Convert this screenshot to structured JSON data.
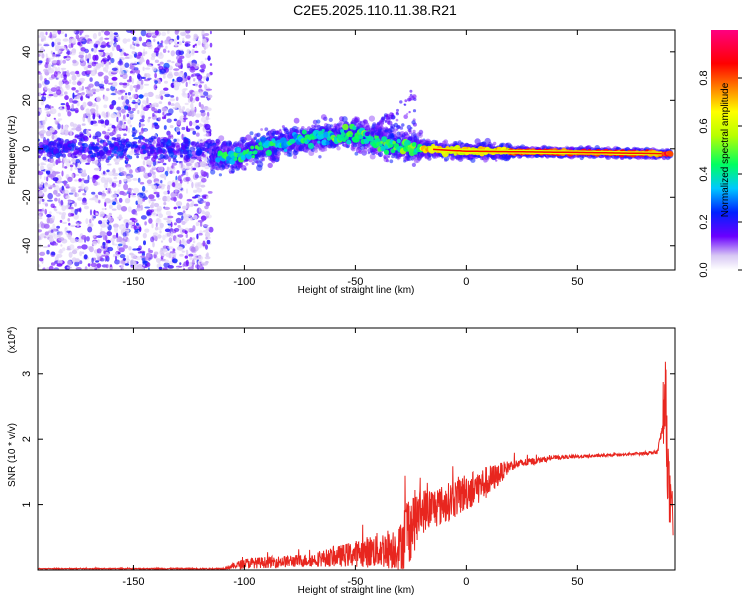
{
  "title": "C2E5.2025.110.11.38.R21",
  "chart_data": [
    {
      "type": "heatmap",
      "xlabel": "Height of straight line (km)",
      "ylabel": "Frequency (Hz)",
      "xlim": [
        -193,
        94
      ],
      "ylim": [
        -50,
        49
      ],
      "xticks": [
        -150,
        -100,
        -50,
        0,
        50
      ],
      "xtick_labels": [
        "-150",
        "-100",
        "-50",
        "0",
        "50"
      ],
      "yticks": [
        -40,
        -20,
        0,
        20,
        40
      ],
      "ytick_labels": [
        "-40",
        "-20",
        "0",
        "20",
        "40"
      ],
      "colorbar": {
        "label": "Normalized spectral amplitude",
        "range": [
          0,
          1
        ],
        "ticks": [
          0.0,
          0.2,
          0.4,
          0.6,
          0.8
        ],
        "tick_labels": [
          "0.0",
          "0.2",
          "0.4",
          "0.6",
          "0.8"
        ]
      },
      "ridge": [
        {
          "x": -110,
          "f": -3
        },
        {
          "x": -100,
          "f": -2
        },
        {
          "x": -90,
          "f": 1
        },
        {
          "x": -80,
          "f": 3
        },
        {
          "x": -70,
          "f": 4
        },
        {
          "x": -60,
          "f": 6
        },
        {
          "x": -50,
          "f": 6
        },
        {
          "x": -40,
          "f": 3
        },
        {
          "x": -30,
          "f": 1
        },
        {
          "x": -20,
          "f": 0
        },
        {
          "x": 0,
          "f": -1
        },
        {
          "x": 50,
          "f": -1.5
        },
        {
          "x": 88,
          "f": -2
        }
      ]
    },
    {
      "type": "line",
      "xlabel": "Height of straight line (km)",
      "ylabel": "SNR (10 * v/v)",
      "y_multiplier": "(x10^4)",
      "xlim": [
        -193,
        94
      ],
      "ylim": [
        0,
        3.7
      ],
      "xticks": [
        -150,
        -100,
        -50,
        0,
        50
      ],
      "xtick_labels": [
        "-150",
        "-100",
        "-50",
        "0",
        "50"
      ],
      "yticks": [
        1,
        2,
        3
      ],
      "ytick_labels": [
        "1",
        "2",
        "3"
      ],
      "series": [
        {
          "color": "#e8261f",
          "envelope": [
            {
              "x": -193,
              "mean": 0.02,
              "noise": 0.005
            },
            {
              "x": -110,
              "mean": 0.02,
              "noise": 0.01
            },
            {
              "x": -100,
              "mean": 0.1,
              "noise": 0.08
            },
            {
              "x": -70,
              "mean": 0.15,
              "noise": 0.1
            },
            {
              "x": -50,
              "mean": 0.25,
              "noise": 0.2
            },
            {
              "x": -30,
              "mean": 0.35,
              "noise": 0.35
            },
            {
              "x": -27,
              "mean": 0.6,
              "noise": 0.6
            },
            {
              "x": -20,
              "mean": 0.9,
              "noise": 0.35
            },
            {
              "x": -10,
              "mean": 1.0,
              "noise": 0.3
            },
            {
              "x": 0,
              "mean": 1.2,
              "noise": 0.3
            },
            {
              "x": 10,
              "mean": 1.35,
              "noise": 0.25
            },
            {
              "x": 20,
              "mean": 1.6,
              "noise": 0.08
            },
            {
              "x": 40,
              "mean": 1.72,
              "noise": 0.03
            },
            {
              "x": 70,
              "mean": 1.76,
              "noise": 0.02
            },
            {
              "x": 86,
              "mean": 1.8,
              "noise": 0.03
            },
            {
              "x": 88,
              "mean": 2.1,
              "noise": 0.1
            },
            {
              "x": 90,
              "mean": 2.6,
              "noise": 0.8
            },
            {
              "x": 91,
              "mean": 1.3,
              "noise": 0.6
            },
            {
              "x": 93,
              "mean": 0.6,
              "noise": 0.3
            }
          ]
        }
      ]
    }
  ]
}
